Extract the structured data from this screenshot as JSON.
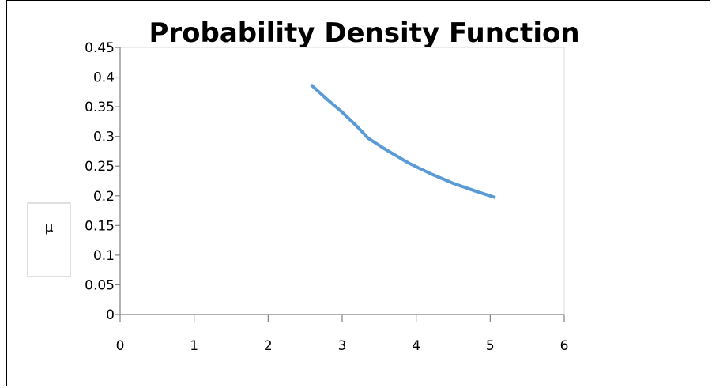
{
  "chart_data": {
    "type": "line",
    "title": "Probability Density Function",
    "xlabel": "",
    "ylabel": "μ",
    "xlim": [
      0,
      6
    ],
    "ylim": [
      0,
      0.45
    ],
    "x_ticks": [
      "0",
      "1",
      "2",
      "3",
      "4",
      "5",
      "6"
    ],
    "y_ticks": [
      "0",
      "0.05",
      "0.1",
      "0.15",
      "0.2",
      "0.25",
      "0.3",
      "0.35",
      "0.4",
      "0.45"
    ],
    "grid": false,
    "series": [
      {
        "color": "#5b9bd5",
        "x": [
          2.58,
          2.8,
          3.0,
          3.2,
          3.35,
          3.6,
          3.9,
          4.2,
          4.5,
          4.8,
          5.07
        ],
        "y": [
          0.387,
          0.362,
          0.341,
          0.317,
          0.297,
          0.277,
          0.255,
          0.237,
          0.221,
          0.208,
          0.197
        ]
      }
    ]
  }
}
